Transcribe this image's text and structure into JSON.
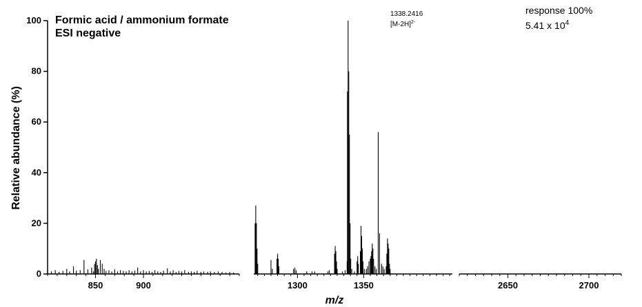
{
  "chart_data": {
    "type": "bar",
    "title": [
      "Formic acid / ammonium formate",
      "ESI negative"
    ],
    "xlabel": "m/z",
    "ylabel": "Relative abundance (%)",
    "ylim": [
      0,
      100
    ],
    "yticks": [
      "0",
      "20",
      "40",
      "60",
      "80",
      "100"
    ],
    "peak_label": {
      "mz": "1338.2416",
      "ion": "[M-2H]",
      "charge": "2-"
    },
    "response": {
      "line1": "response 100%",
      "base": "5.41 x 10",
      "exponent": "4"
    },
    "panels": [
      {
        "xlim": [
          800,
          1000
        ],
        "xticks": [
          "850",
          "900"
        ],
        "peaks": [
          [
            804,
            1.0
          ],
          [
            808,
            1.5
          ],
          [
            812,
            0.8
          ],
          [
            816,
            1.2
          ],
          [
            820,
            2.0
          ],
          [
            823,
            1.0
          ],
          [
            827,
            3.0
          ],
          [
            830,
            1.3
          ],
          [
            834,
            1.5
          ],
          [
            838,
            5.5
          ],
          [
            842,
            1.8
          ],
          [
            846,
            2.5
          ],
          [
            848,
            1.0
          ],
          [
            849,
            4.0
          ],
          [
            850,
            5.0
          ],
          [
            851,
            6.0
          ],
          [
            852,
            3.5
          ],
          [
            853,
            2.0
          ],
          [
            855,
            5.5
          ],
          [
            857,
            4.0
          ],
          [
            859,
            2.0
          ],
          [
            861,
            1.2
          ],
          [
            864,
            1.5
          ],
          [
            867,
            1.0
          ],
          [
            870,
            1.8
          ],
          [
            873,
            1.0
          ],
          [
            876,
            1.5
          ],
          [
            879,
            1.2
          ],
          [
            882,
            1.0
          ],
          [
            885,
            1.5
          ],
          [
            888,
            1.0
          ],
          [
            891,
            1.3
          ],
          [
            894,
            2.5
          ],
          [
            897,
            1.0
          ],
          [
            900,
            1.5
          ],
          [
            903,
            1.0
          ],
          [
            906,
            1.2
          ],
          [
            909,
            0.8
          ],
          [
            912,
            1.5
          ],
          [
            915,
            1.0
          ],
          [
            918,
            0.8
          ],
          [
            921,
            1.3
          ],
          [
            925,
            2.2
          ],
          [
            928,
            1.0
          ],
          [
            931,
            1.5
          ],
          [
            934,
            0.8
          ],
          [
            937,
            1.2
          ],
          [
            940,
            1.0
          ],
          [
            943,
            1.5
          ],
          [
            947,
            0.8
          ],
          [
            950,
            1.0
          ],
          [
            953,
            0.8
          ],
          [
            956,
            1.2
          ],
          [
            960,
            0.8
          ],
          [
            963,
            1.0
          ],
          [
            967,
            0.8
          ],
          [
            970,
            1.0
          ],
          [
            974,
            0.8
          ],
          [
            978,
            1.0
          ],
          [
            982,
            0.8
          ],
          [
            986,
            0.6
          ],
          [
            990,
            0.8
          ],
          [
            994,
            0.6
          ]
        ]
      },
      {
        "xlim": [
          1267,
          1417
        ],
        "xticks": [
          "1300",
          "1350"
        ],
        "peaks": [
          [
            1268.0,
            20
          ],
          [
            1268.5,
            27
          ],
          [
            1269.0,
            20
          ],
          [
            1269.5,
            10
          ],
          [
            1270.0,
            4
          ],
          [
            1280.0,
            5.5
          ],
          [
            1281.0,
            2
          ],
          [
            1284.5,
            6
          ],
          [
            1285.0,
            8
          ],
          [
            1285.5,
            6
          ],
          [
            1286.0,
            3
          ],
          [
            1297.0,
            2
          ],
          [
            1298.0,
            2.5
          ],
          [
            1299.0,
            1.5
          ],
          [
            1307.0,
            1
          ],
          [
            1311.0,
            1
          ],
          [
            1313.0,
            1
          ],
          [
            1323.0,
            1
          ],
          [
            1324.0,
            1.5
          ],
          [
            1328.0,
            8
          ],
          [
            1328.5,
            11
          ],
          [
            1329.0,
            9
          ],
          [
            1329.5,
            5
          ],
          [
            1330.0,
            2
          ],
          [
            1334.0,
            1
          ],
          [
            1336.0,
            1.5
          ],
          [
            1337.5,
            5
          ],
          [
            1337.75,
            72
          ],
          [
            1338.25,
            100
          ],
          [
            1338.75,
            80
          ],
          [
            1339.25,
            55
          ],
          [
            1339.75,
            20
          ],
          [
            1340.25,
            6
          ],
          [
            1341.0,
            2
          ],
          [
            1343.0,
            1
          ],
          [
            1345.0,
            5
          ],
          [
            1345.5,
            7
          ],
          [
            1346.0,
            4
          ],
          [
            1347.5,
            9
          ],
          [
            1348.0,
            19
          ],
          [
            1348.5,
            15
          ],
          [
            1349.0,
            10
          ],
          [
            1349.5,
            5
          ],
          [
            1350.5,
            2
          ],
          [
            1352.0,
            2
          ],
          [
            1353.0,
            3
          ],
          [
            1354.0,
            5
          ],
          [
            1355.0,
            6
          ],
          [
            1355.5,
            7
          ],
          [
            1356.0,
            9
          ],
          [
            1356.5,
            12
          ],
          [
            1357.0,
            10
          ],
          [
            1357.5,
            6
          ],
          [
            1358.5,
            3
          ],
          [
            1359.5,
            2
          ],
          [
            1361.0,
            56
          ],
          [
            1362.0,
            16
          ],
          [
            1363.5,
            4
          ],
          [
            1364.5,
            3
          ],
          [
            1365.5,
            2
          ],
          [
            1367.0,
            3
          ],
          [
            1367.5,
            8
          ],
          [
            1368.0,
            14
          ],
          [
            1368.5,
            12
          ],
          [
            1369.0,
            10
          ],
          [
            1369.5,
            4
          ],
          [
            1370.0,
            2
          ]
        ]
      },
      {
        "xlim": [
          2620,
          2720
        ],
        "xticks": [
          "2650",
          "2700"
        ],
        "peaks": []
      }
    ]
  }
}
